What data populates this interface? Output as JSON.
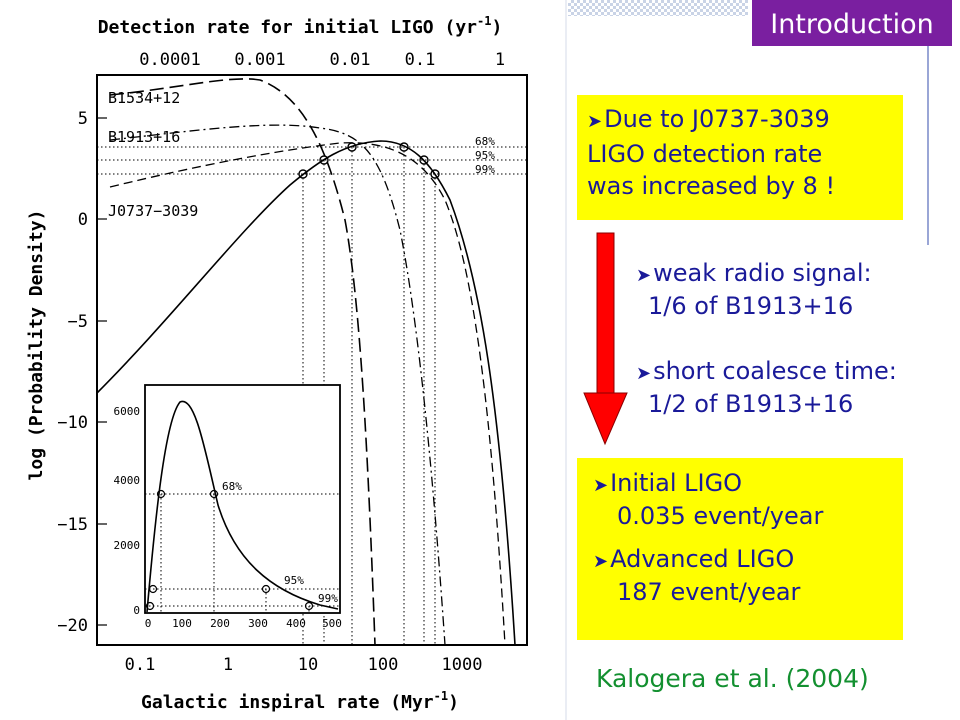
{
  "slide": {
    "tag": "Introduction",
    "box1": {
      "bullet": "Due to J0737-3039",
      "line2": "LIGO detection rate",
      "line3": "was increased by 8 !"
    },
    "items": [
      {
        "bullet": "weak radio signal:",
        "sub": "1/6 of B1913+16"
      },
      {
        "bullet": "short coalesce time:",
        "sub": "1/2 of B1913+16"
      }
    ],
    "box2": [
      {
        "bullet": "Initial LIGO",
        "sub": "0.035 event/year"
      },
      {
        "bullet": "Advanced LIGO",
        "sub": "187 event/year"
      }
    ],
    "citation": "Kalogera et al. (2004)",
    "colors": {
      "tag_bg": "#7a1fa0",
      "box_bg": "#ffff00",
      "text": "#1a1a99",
      "cite": "#139030",
      "arrow": "#ff0000"
    },
    "bullet_icon": "arrow-bullet-icon"
  },
  "figure": {
    "top_axis_label": "Detection rate for initial LIGO (yr",
    "top_axis_label_sup": "-1",
    "top_axis_label_end": ")",
    "top_ticks": [
      "0.0001",
      "0.001",
      "0.01",
      "0.1",
      "1"
    ],
    "xlabel": "Galactic inspiral rate (Myr",
    "xlabel_sup": "-1",
    "xlabel_end": ")",
    "x_ticks": [
      "0.1",
      "1",
      "10",
      "100",
      "1000"
    ],
    "ylabel": "log (Probability Density)",
    "y_ticks": [
      "5",
      "0",
      "−5",
      "−10",
      "−15",
      "−20"
    ],
    "curve_labels": [
      "B1534+12",
      "B1913+16",
      "J0737−3039"
    ],
    "level_labels": [
      "68%",
      "95%",
      "99%"
    ],
    "inset": {
      "y_ticks": [
        "6000",
        "4000",
        "2000",
        "0"
      ],
      "x_ticks": [
        "0",
        "100",
        "200",
        "300",
        "400",
        "500"
      ],
      "level_labels": [
        "68%",
        "95%",
        "99%"
      ]
    }
  }
}
